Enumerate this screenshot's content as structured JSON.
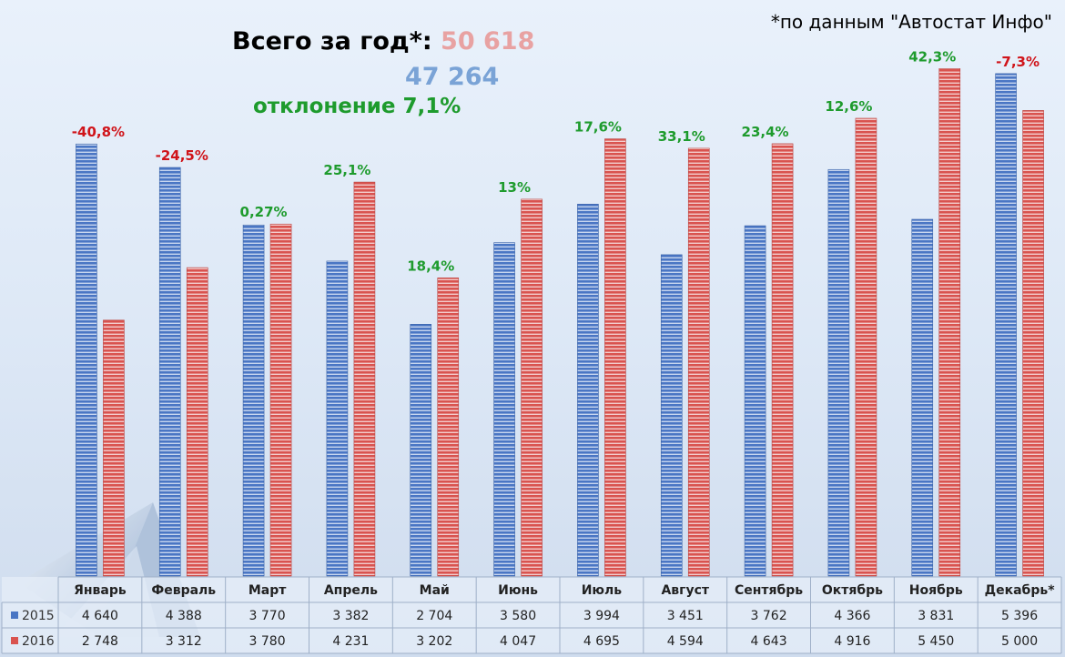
{
  "source_note": "*по данным \"Автостат Инфо\"",
  "totals": {
    "label": "Всего за год*:",
    "total_2016": "50 618",
    "total_2015": "47 264",
    "deviation": "отклонение 7,1%"
  },
  "colors": {
    "series_2015": "#4a76c4",
    "series_2016": "#d9534f",
    "change_positive": "#1e9b2d",
    "change_negative": "#d0141a",
    "total_2016": "#e8a2a2",
    "total_2015": "#7aa3d6"
  },
  "chart_data": {
    "type": "bar",
    "categories": [
      "Январь",
      "Февраль",
      "Март",
      "Апрель",
      "Май",
      "Июнь",
      "Июль",
      "Август",
      "Сентябрь",
      "Октябрь",
      "Ноябрь",
      "Декабрь*"
    ],
    "series": [
      {
        "name": "2015",
        "values": [
          4640,
          4388,
          3770,
          3382,
          2704,
          3580,
          3994,
          3451,
          3762,
          4366,
          3831,
          5396
        ],
        "display": [
          "4 640",
          "4 388",
          "3 770",
          "3 382",
          "2 704",
          "3 580",
          "3 994",
          "3 451",
          "3 762",
          "4 366",
          "3 831",
          "5 396"
        ]
      },
      {
        "name": "2016",
        "values": [
          2748,
          3312,
          3780,
          4231,
          3202,
          4047,
          4695,
          4594,
          4643,
          4916,
          5450,
          5000
        ],
        "display": [
          "2 748",
          "3 312",
          "3 780",
          "4 231",
          "3 202",
          "4 047",
          "4 695",
          "4 594",
          "4 643",
          "4 916",
          "5 450",
          "5 000"
        ]
      }
    ],
    "change_labels": [
      "-40,8%",
      "-24,5%",
      "0,27%",
      "25,1%",
      "18,4%",
      "13%",
      "17,6%",
      "33,1%",
      "23,4%",
      "12,6%",
      "42,3%",
      "-7,3%"
    ],
    "ylim": [
      0,
      5600
    ],
    "grid": false,
    "legend": "data-table-bottom"
  }
}
